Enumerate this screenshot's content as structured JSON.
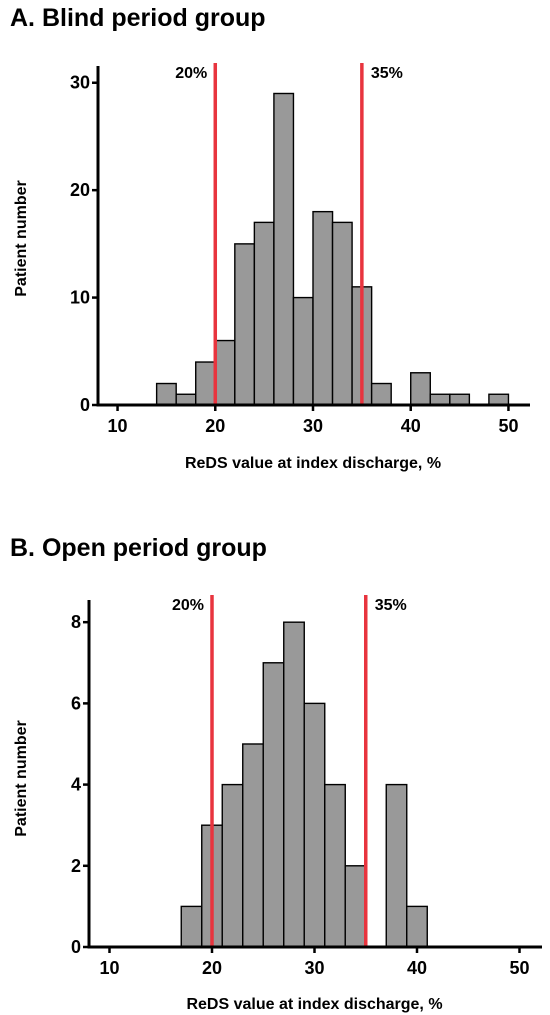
{
  "chart_data": [
    {
      "type": "bar",
      "title": "A. Blind period group",
      "xlabel": "ReDS value at index discharge, %",
      "ylabel": "Patient number",
      "xlim": [
        8,
        52
      ],
      "ylim": [
        0,
        31
      ],
      "xticks": [
        10,
        20,
        30,
        40,
        50
      ],
      "yticks": [
        0,
        10,
        20,
        30
      ],
      "bin_width": 2,
      "bins": [
        {
          "x0": 14,
          "x1": 16,
          "value": 2
        },
        {
          "x0": 16,
          "x1": 18,
          "value": 1
        },
        {
          "x0": 18,
          "x1": 20,
          "value": 4
        },
        {
          "x0": 20,
          "x1": 22,
          "value": 6
        },
        {
          "x0": 22,
          "x1": 24,
          "value": 15
        },
        {
          "x0": 24,
          "x1": 26,
          "value": 17
        },
        {
          "x0": 26,
          "x1": 28,
          "value": 29
        },
        {
          "x0": 28,
          "x1": 30,
          "value": 10
        },
        {
          "x0": 30,
          "x1": 32,
          "value": 18
        },
        {
          "x0": 32,
          "x1": 34,
          "value": 17
        },
        {
          "x0": 34,
          "x1": 36,
          "value": 11
        },
        {
          "x0": 36,
          "x1": 38,
          "value": 2
        },
        {
          "x0": 40,
          "x1": 42,
          "value": 3
        },
        {
          "x0": 42,
          "x1": 44,
          "value": 1
        },
        {
          "x0": 44,
          "x1": 46,
          "value": 1
        },
        {
          "x0": 48,
          "x1": 50,
          "value": 1
        }
      ],
      "reference_lines": [
        {
          "x": 20,
          "label": "20%",
          "color": "#e8343e"
        },
        {
          "x": 35,
          "label": "35%",
          "color": "#e8343e"
        }
      ],
      "bar_color": "#999999",
      "grid": false
    },
    {
      "type": "bar",
      "title": "B. Open period group",
      "xlabel": "ReDS value at index discharge, %",
      "ylabel": "Patient number",
      "xlim": [
        8,
        52
      ],
      "ylim": [
        0,
        8.3
      ],
      "xticks": [
        10,
        20,
        30,
        40,
        50
      ],
      "yticks": [
        0,
        2,
        4,
        6,
        8
      ],
      "bin_width": 2,
      "bins": [
        {
          "x0": 17,
          "x1": 19,
          "value": 1
        },
        {
          "x0": 19,
          "x1": 21,
          "value": 3
        },
        {
          "x0": 21,
          "x1": 23,
          "value": 4
        },
        {
          "x0": 23,
          "x1": 25,
          "value": 5
        },
        {
          "x0": 25,
          "x1": 27,
          "value": 7
        },
        {
          "x0": 27,
          "x1": 29,
          "value": 8
        },
        {
          "x0": 29,
          "x1": 31,
          "value": 6
        },
        {
          "x0": 31,
          "x1": 33,
          "value": 4
        },
        {
          "x0": 33,
          "x1": 35,
          "value": 2
        },
        {
          "x0": 37,
          "x1": 39,
          "value": 4
        },
        {
          "x0": 39,
          "x1": 41,
          "value": 1
        }
      ],
      "reference_lines": [
        {
          "x": 20,
          "label": "20%",
          "color": "#e8343e"
        },
        {
          "x": 35,
          "label": "35%",
          "color": "#e8343e"
        }
      ],
      "bar_color": "#999999",
      "grid": false
    }
  ]
}
